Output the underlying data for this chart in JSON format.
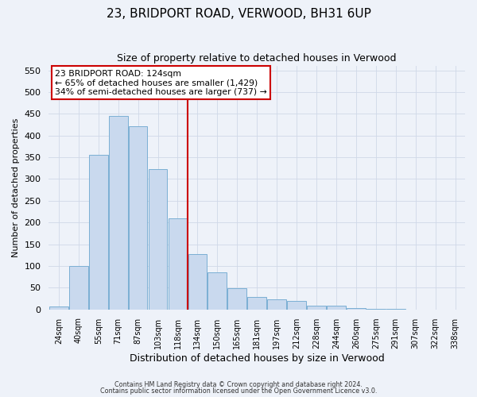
{
  "title": "23, BRIDPORT ROAD, VERWOOD, BH31 6UP",
  "subtitle": "Size of property relative to detached houses in Verwood",
  "xlabel": "Distribution of detached houses by size in Verwood",
  "ylabel": "Number of detached properties",
  "bin_labels": [
    "24sqm",
    "40sqm",
    "55sqm",
    "71sqm",
    "87sqm",
    "103sqm",
    "118sqm",
    "134sqm",
    "150sqm",
    "165sqm",
    "181sqm",
    "197sqm",
    "212sqm",
    "228sqm",
    "244sqm",
    "260sqm",
    "275sqm",
    "291sqm",
    "307sqm",
    "322sqm",
    "338sqm"
  ],
  "bar_heights": [
    7,
    100,
    355,
    445,
    422,
    322,
    210,
    128,
    85,
    48,
    29,
    24,
    19,
    9,
    9,
    4,
    1,
    2,
    0,
    0,
    0
  ],
  "bar_color": "#c9d9ee",
  "bar_edgecolor": "#7bafd4",
  "marker_bin_index": 6,
  "marker_color": "#cc0000",
  "ylim": [
    0,
    560
  ],
  "yticks": [
    0,
    50,
    100,
    150,
    200,
    250,
    300,
    350,
    400,
    450,
    500,
    550
  ],
  "annotation_title": "23 BRIDPORT ROAD: 124sqm",
  "annotation_line1": "← 65% of detached houses are smaller (1,429)",
  "annotation_line2": "34% of semi-detached houses are larger (737) →",
  "annotation_box_facecolor": "#ffffff",
  "annotation_box_edgecolor": "#cc0000",
  "footer_line1": "Contains HM Land Registry data © Crown copyright and database right 2024.",
  "footer_line2": "Contains public sector information licensed under the Open Government Licence v3.0.",
  "background_color": "#eef2f9",
  "grid_color": "#d0d8e8"
}
